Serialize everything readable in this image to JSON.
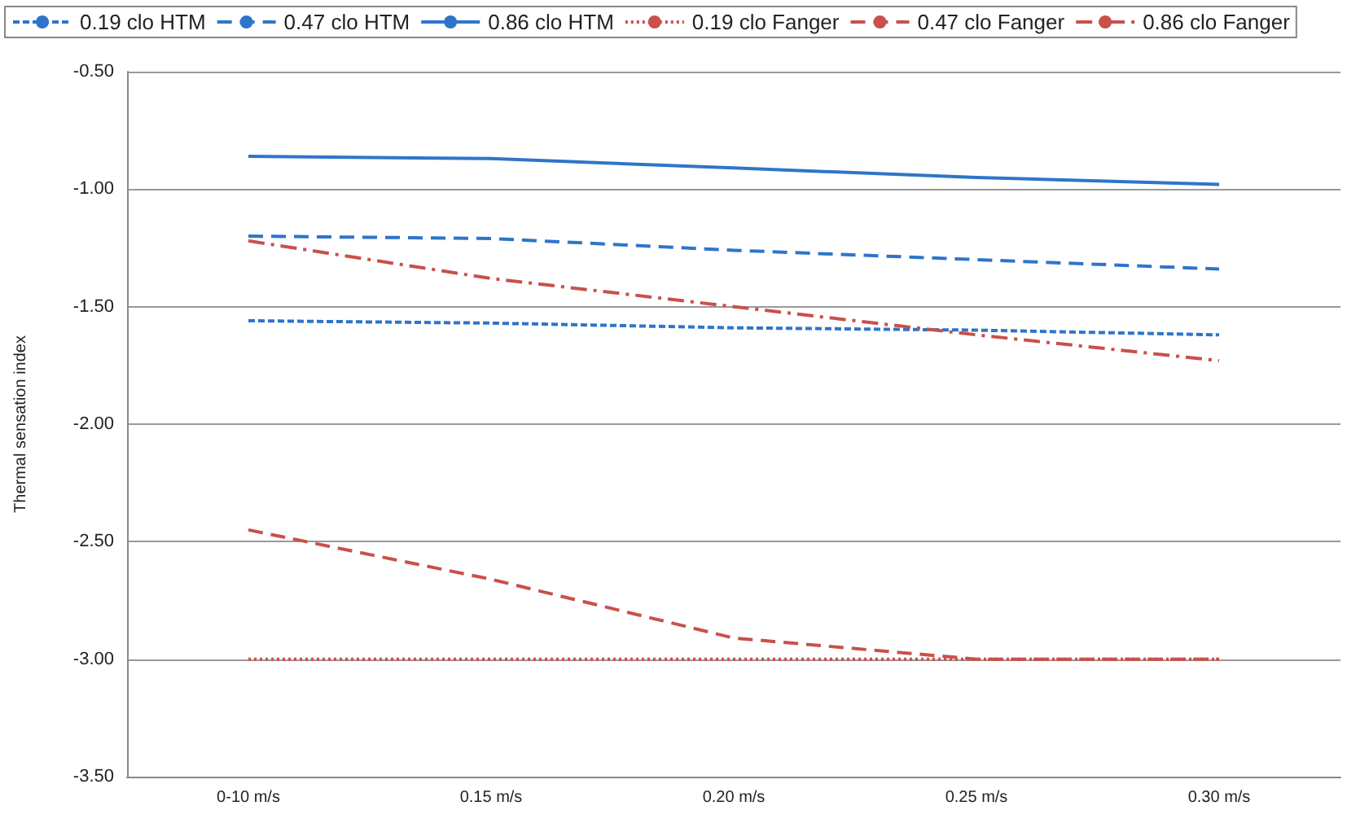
{
  "chart_data": {
    "type": "line",
    "ylabel": "Thermal sensation index",
    "categories": [
      "0-10 m/s",
      "0.15 m/s",
      "0.20 m/s",
      "0.25 m/s",
      "0.30 m/s"
    ],
    "series": [
      {
        "name": "0.19 clo HTM",
        "color": "#2e75c9",
        "line_style": "shortdash",
        "values": [
          -1.56,
          -1.57,
          -1.59,
          -1.6,
          -1.62
        ]
      },
      {
        "name": "0.47 clo HTM",
        "color": "#2e75c9",
        "line_style": "dashed",
        "values": [
          -1.2,
          -1.21,
          -1.26,
          -1.3,
          -1.34
        ]
      },
      {
        "name": "0.86 clo HTM",
        "color": "#2e75c9",
        "line_style": "solid",
        "values": [
          -0.86,
          -0.87,
          -0.91,
          -0.95,
          -0.98
        ]
      },
      {
        "name": "0.19 clo Fanger",
        "color": "#c9504b",
        "line_style": "dotted",
        "values": [
          -3,
          -3,
          -3,
          -3,
          -3
        ]
      },
      {
        "name": "0.47 clo Fanger",
        "color": "#c9504b",
        "line_style": "dashed",
        "values": [
          -2.45,
          -2.66,
          -2.91,
          -3,
          -3
        ]
      },
      {
        "name": "0.86 clo Fanger",
        "color": "#c9504b",
        "line_style": "dashdot",
        "values": [
          -1.22,
          -1.38,
          -1.5,
          -1.62,
          -1.73
        ]
      }
    ],
    "ylim": [
      -3.5,
      -0.5
    ],
    "yticks": [
      {
        "value": -3.5,
        "label": "-3.50"
      },
      {
        "value": -3,
        "label": "-3.00"
      },
      {
        "value": -2.5,
        "label": "-2.50"
      },
      {
        "value": -2,
        "label": "-2.00"
      },
      {
        "value": -1.5,
        "label": "-1.50"
      },
      {
        "value": -1,
        "label": "-1.00"
      },
      {
        "value": -0.5,
        "label": "-0.50"
      }
    ],
    "grid": "y",
    "legend": "top",
    "marker": "none"
  }
}
